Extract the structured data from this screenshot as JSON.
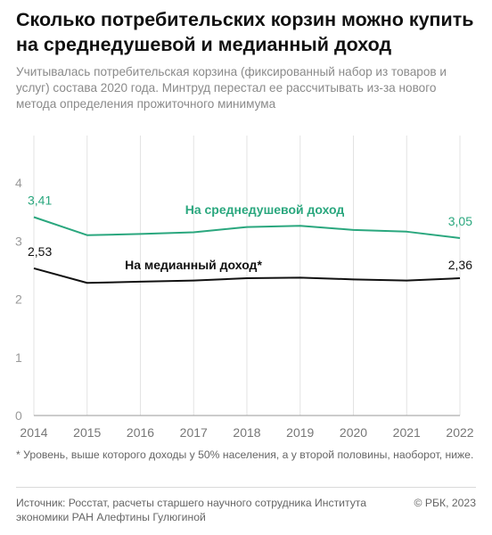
{
  "header": {
    "title": "Сколько потребительских корзин можно купить на среднедушевой и медианный доход",
    "subtitle": "Учитывалась потребительская корзина (фиксированный набор из товаров и услуг) состава 2020 года. Минтруд перестал ее рассчитывать из-за нового метода определения прожиточного минимума"
  },
  "chart_data": {
    "type": "line",
    "x": [
      2014,
      2015,
      2016,
      2017,
      2018,
      2019,
      2020,
      2021,
      2022
    ],
    "ylim": [
      0,
      4
    ],
    "yticks": [
      0,
      1,
      2,
      3,
      4
    ],
    "grid": "vertical",
    "series": [
      {
        "name": "На среднедушевой доход",
        "color": "#2aa77e",
        "values": [
          3.41,
          3.1,
          3.12,
          3.15,
          3.24,
          3.26,
          3.19,
          3.16,
          3.05
        ],
        "start_label": "3,41",
        "end_label": "3,05"
      },
      {
        "name": "На медианный доход*",
        "color": "#111111",
        "values": [
          2.53,
          2.28,
          2.3,
          2.32,
          2.36,
          2.37,
          2.34,
          2.32,
          2.36
        ],
        "start_label": "2,53",
        "end_label": "2,36"
      }
    ]
  },
  "footnote": "* Уровень, выше которого доходы у 50% населения, а у второй половины, наоборот, ниже.",
  "source": "Источник: Росстат, расчеты старшего научного сотрудника Института экономики РАН Алефтины Гулюгиной",
  "copyright": "© РБК, 2023"
}
